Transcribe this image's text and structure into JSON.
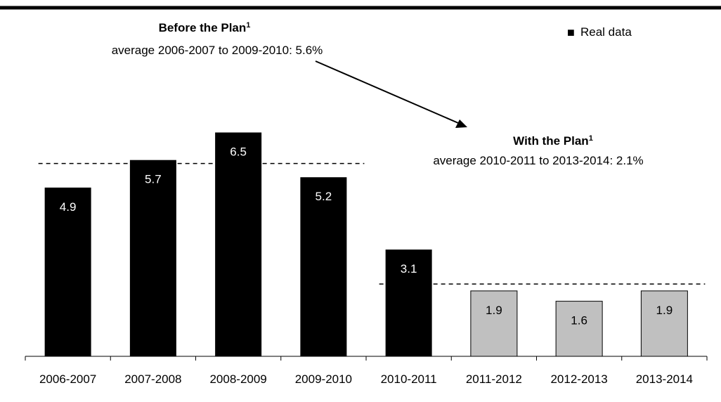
{
  "chart_data": {
    "type": "bar",
    "categories": [
      "2006-2007",
      "2007-2008",
      "2008-2009",
      "2009-2010",
      "2010-2011",
      "2011-2012",
      "2012-2013",
      "2013-2014"
    ],
    "values": [
      4.9,
      5.7,
      6.5,
      5.2,
      3.1,
      1.9,
      1.6,
      1.9
    ],
    "value_labels": [
      "4.9",
      "5.7",
      "6.5",
      "5.2",
      "3.1",
      "1.9",
      "1.6",
      "1.9"
    ],
    "real_data": [
      true,
      true,
      true,
      true,
      true,
      false,
      false,
      false
    ],
    "legend": {
      "label": "Real data",
      "marker": "■",
      "placement": "top-right"
    },
    "ylim": [
      0,
      7.5
    ],
    "grid": false,
    "colors": {
      "real": "#000000",
      "plan": "#c0c0c0",
      "plan_border": "#000000"
    },
    "annotations": {
      "before": {
        "title": "Before the Plan",
        "sup": "1",
        "subtitle": "average 2006-2007 to 2009-2010: 5.6%",
        "average": 5.6,
        "from": "2006-2007",
        "to": "2009-2010"
      },
      "after": {
        "title": "With the Plan",
        "sup": "1",
        "subtitle": "average 2010-2011 to 2013-2014: 2.1%",
        "average": 2.1,
        "from": "2010-2011",
        "to": "2013-2014"
      }
    }
  }
}
